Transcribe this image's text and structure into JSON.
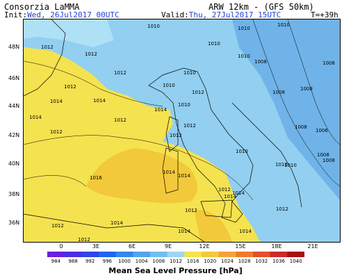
{
  "header": {
    "org": "Consorzia LaMMA",
    "model": "ARW 12km - (GFS 50km)",
    "init_label": "Init:",
    "init_value": "Wed, 26Jul2017 00UTC",
    "valid_label": "Valid:",
    "valid_value": "Thu, 27Jul2017 15UTC",
    "time_step": "T=+39h"
  },
  "map": {
    "lat_labels": [
      "48N",
      "46N",
      "44N",
      "42N",
      "40N",
      "38N",
      "36N"
    ],
    "lon_labels": [
      "0",
      "3E",
      "6E",
      "9E",
      "12E",
      "15E",
      "18E",
      "21E"
    ],
    "isobar_labels": [
      "1010",
      "1010",
      "1012",
      "1010",
      "1012",
      "1010",
      "1010",
      "1012",
      "1014",
      "1008",
      "1012",
      "1008",
      "1010",
      "1010",
      "1012",
      "1010",
      "1014",
      "1008",
      "1008",
      "1014",
      "1012",
      "1014",
      "1012",
      "1012",
      "1012",
      "1010",
      "1010",
      "1008",
      "1016",
      "1014",
      "1014",
      "1014",
      "1012",
      "1012",
      "1014",
      "1012",
      "1012",
      "1014",
      "1014",
      "1014",
      "1012",
      "1008",
      "1006",
      "1008",
      "1010"
    ],
    "colors": {
      "sea_light_blue": "#92cff0",
      "light_cyan": "#aee0f6",
      "mid_blue": "#6fb3e8",
      "yellow": "#f5e24f",
      "orange_yellow": "#f2c93a",
      "land_border": "#000000"
    }
  },
  "colorbar": {
    "title": "Mean Sea Level Pressure [hPa]",
    "ticks": [
      "984",
      "988",
      "992",
      "996",
      "1000",
      "1004",
      "1008",
      "1012",
      "1016",
      "1020",
      "1024",
      "1028",
      "1032",
      "1036",
      "1040"
    ],
    "colors": [
      "#6a1ee0",
      "#4a2fe6",
      "#2f46ea",
      "#1f66ea",
      "#2f8ae8",
      "#4fa6ea",
      "#6fbfee",
      "#9fd6f2",
      "#f5e24f",
      "#f2c93a",
      "#f3a23a",
      "#ef7a2a",
      "#e3502a",
      "#cc2a2a",
      "#a81010"
    ]
  }
}
